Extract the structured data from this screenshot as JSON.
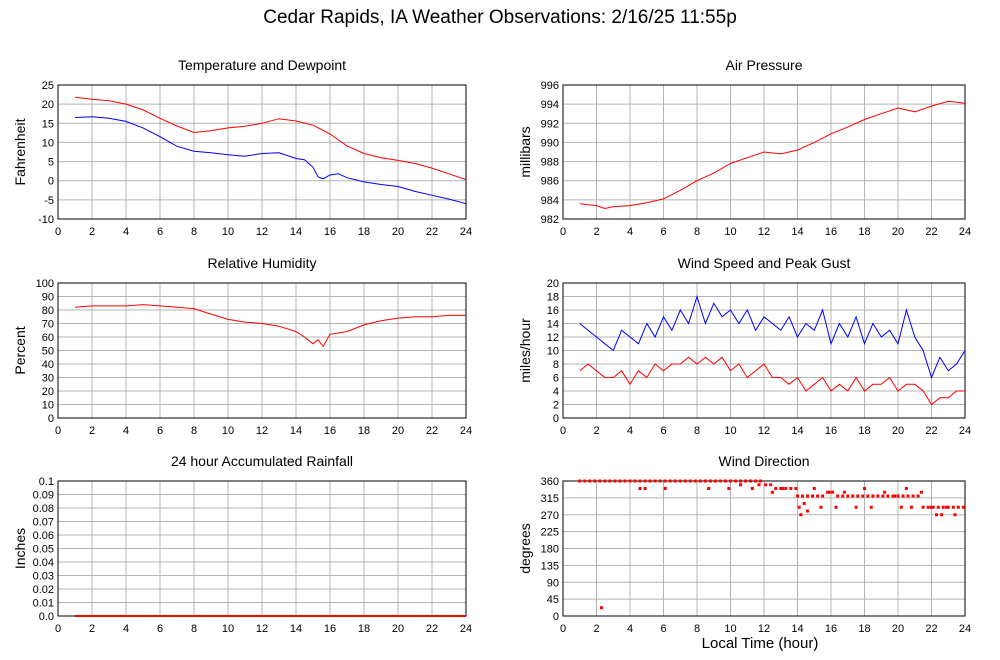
{
  "page": {
    "title": "Cedar Rapids, IA Weather Observations: 2/16/25 11:55p",
    "xlabel": "Local Time (hour)"
  },
  "colors": {
    "red": "#ff0000",
    "blue": "#0000ff",
    "grid": "#b4b4b4",
    "axis": "#000000"
  },
  "chart_data": [
    {
      "id": "temp",
      "type": "line",
      "title": "Temperature and Dewpoint",
      "ylabel": "Fahrenheit",
      "xlim": [
        0,
        24
      ],
      "ylim": [
        -10,
        25
      ],
      "xticks": [
        0,
        2,
        4,
        6,
        8,
        10,
        12,
        14,
        16,
        18,
        20,
        22,
        24
      ],
      "yticks": [
        -10,
        -5,
        0,
        5,
        10,
        15,
        20,
        25
      ],
      "grid": true,
      "series": [
        {
          "color": "#ff0000",
          "x": [
            1,
            2,
            3,
            4,
            5,
            6,
            7,
            8,
            9,
            10,
            11,
            12,
            13,
            14,
            15,
            16,
            17,
            18,
            19,
            20,
            21,
            22,
            23,
            24
          ],
          "y": [
            21.8,
            21.3,
            20.9,
            20.0,
            18.5,
            16.3,
            14.3,
            12.6,
            13.1,
            13.8,
            14.2,
            15.0,
            16.2,
            15.6,
            14.5,
            12.2,
            9.1,
            7.1,
            6.0,
            5.3,
            4.5,
            3.3,
            1.8,
            0.3
          ]
        },
        {
          "color": "#0000ff",
          "x": [
            1,
            2,
            3,
            4,
            5,
            6,
            7,
            8,
            9,
            10,
            11,
            12,
            13,
            14,
            14.5,
            15,
            15.3,
            15.6,
            16,
            16.5,
            17,
            18,
            19,
            20,
            21,
            22,
            23,
            24
          ],
          "y": [
            16.5,
            16.7,
            16.3,
            15.5,
            13.8,
            11.5,
            9.0,
            7.7,
            7.3,
            6.8,
            6.4,
            7.1,
            7.3,
            5.8,
            5.5,
            3.5,
            1.0,
            0.5,
            1.5,
            1.8,
            0.8,
            -0.3,
            -1.0,
            -1.5,
            -2.8,
            -3.8,
            -4.8,
            -6.0
          ]
        }
      ]
    },
    {
      "id": "pres",
      "type": "line",
      "title": "Air Pressure",
      "ylabel": "millibars",
      "xlim": [
        0,
        24
      ],
      "ylim": [
        982,
        996
      ],
      "xticks": [
        0,
        2,
        4,
        6,
        8,
        10,
        12,
        14,
        16,
        18,
        20,
        22,
        24
      ],
      "yticks": [
        982,
        984,
        986,
        988,
        990,
        992,
        994,
        996
      ],
      "grid": true,
      "series": [
        {
          "color": "#ff0000",
          "x": [
            1,
            2,
            2.5,
            3,
            4,
            5,
            6,
            7,
            8,
            9,
            10,
            11,
            12,
            13,
            14,
            15,
            16,
            17,
            18,
            19,
            20,
            21,
            22,
            23,
            24
          ],
          "y": [
            983.6,
            983.4,
            983.1,
            983.3,
            983.4,
            983.7,
            984.1,
            985.0,
            986.0,
            986.8,
            987.8,
            988.4,
            989.0,
            988.8,
            989.2,
            990.0,
            990.9,
            991.6,
            992.4,
            993.0,
            993.6,
            993.2,
            993.8,
            994.3,
            994.1
          ]
        }
      ]
    },
    {
      "id": "rh",
      "type": "line",
      "title": "Relative Humidity",
      "ylabel": "Percent",
      "xlim": [
        0,
        24
      ],
      "ylim": [
        0,
        100
      ],
      "xticks": [
        0,
        2,
        4,
        6,
        8,
        10,
        12,
        14,
        16,
        18,
        20,
        22,
        24
      ],
      "yticks": [
        0,
        10,
        20,
        30,
        40,
        50,
        60,
        70,
        80,
        90,
        100
      ],
      "grid": true,
      "series": [
        {
          "color": "#ff0000",
          "x": [
            1,
            2,
            3,
            4,
            5,
            6,
            7,
            8,
            9,
            10,
            11,
            12,
            13,
            14,
            14.5,
            15,
            15.3,
            15.6,
            16,
            17,
            18,
            19,
            20,
            21,
            22,
            23,
            24
          ],
          "y": [
            82,
            83,
            83,
            83,
            84,
            83,
            82,
            81,
            77,
            73,
            71,
            70,
            68,
            64,
            60,
            55,
            58,
            53,
            62,
            64,
            69,
            72,
            74,
            75,
            75,
            76,
            76
          ]
        }
      ]
    },
    {
      "id": "wind",
      "type": "line",
      "title": "Wind Speed and Peak Gust",
      "ylabel": "miles/hour",
      "xlim": [
        0,
        24
      ],
      "ylim": [
        0,
        20
      ],
      "xticks": [
        0,
        2,
        4,
        6,
        8,
        10,
        12,
        14,
        16,
        18,
        20,
        22,
        24
      ],
      "yticks": [
        0,
        2,
        4,
        6,
        8,
        10,
        12,
        14,
        16,
        18,
        20
      ],
      "grid": true,
      "series": [
        {
          "color": "#0000ff",
          "x": [
            1,
            1.5,
            2,
            2.5,
            3,
            3.5,
            4,
            4.5,
            5,
            5.5,
            6,
            6.5,
            7,
            7.5,
            8,
            8.5,
            9,
            9.5,
            10,
            10.5,
            11,
            11.5,
            12,
            12.5,
            13,
            13.5,
            14,
            14.5,
            15,
            15.5,
            16,
            16.5,
            17,
            17.5,
            18,
            18.5,
            19,
            19.5,
            20,
            20.5,
            21,
            21.5,
            22,
            22.5,
            23,
            23.5,
            24
          ],
          "y": [
            14,
            13,
            12,
            11,
            10,
            13,
            12,
            11,
            14,
            12,
            15,
            13,
            16,
            14,
            18,
            14,
            17,
            15,
            16,
            14,
            16,
            13,
            15,
            14,
            13,
            15,
            12,
            14,
            13,
            16,
            11,
            14,
            12,
            15,
            11,
            14,
            12,
            13,
            11,
            16,
            12,
            10,
            6,
            9,
            7,
            8,
            10
          ]
        },
        {
          "color": "#ff0000",
          "x": [
            1,
            1.5,
            2,
            2.5,
            3,
            3.5,
            4,
            4.5,
            5,
            5.5,
            6,
            6.5,
            7,
            7.5,
            8,
            8.5,
            9,
            9.5,
            10,
            10.5,
            11,
            11.5,
            12,
            12.5,
            13,
            13.5,
            14,
            14.5,
            15,
            15.5,
            16,
            16.5,
            17,
            17.5,
            18,
            18.5,
            19,
            19.5,
            20,
            20.5,
            21,
            21.5,
            22,
            22.5,
            23,
            23.5,
            24
          ],
          "y": [
            7,
            8,
            7,
            6,
            6,
            7,
            5,
            7,
            6,
            8,
            7,
            8,
            8,
            9,
            8,
            9,
            8,
            9,
            7,
            8,
            6,
            7,
            8,
            6,
            6,
            5,
            6,
            4,
            5,
            6,
            4,
            5,
            4,
            6,
            4,
            5,
            5,
            6,
            4,
            5,
            5,
            4,
            2,
            3,
            3,
            4,
            4
          ]
        }
      ]
    },
    {
      "id": "rain",
      "type": "line",
      "title": "24 hour Accumulated Rainfall",
      "ylabel": "Inches",
      "xlim": [
        0,
        24
      ],
      "ylim": [
        0,
        0.1
      ],
      "xticks": [
        0,
        2,
        4,
        6,
        8,
        10,
        12,
        14,
        16,
        18,
        20,
        22,
        24
      ],
      "yticks": [
        0.0,
        0.01,
        0.02,
        0.03,
        0.04,
        0.05,
        0.06,
        0.07,
        0.08,
        0.09,
        0.1
      ],
      "ytick_labels": [
        "0.0",
        "0.01",
        "0.02",
        "0.03",
        "0.04",
        "0.05",
        "0.06",
        "0.07",
        "0.08",
        "0.09",
        "0.1"
      ],
      "grid": true,
      "series": [
        {
          "color": "#ff0000",
          "x": [
            1,
            24
          ],
          "y": [
            0,
            0
          ]
        }
      ]
    },
    {
      "id": "wdir",
      "type": "scatter",
      "title": "Wind Direction",
      "ylabel": "degrees",
      "xlim": [
        0,
        24
      ],
      "ylim": [
        0,
        360
      ],
      "xticks": [
        0,
        2,
        4,
        6,
        8,
        10,
        12,
        14,
        16,
        18,
        20,
        22,
        24
      ],
      "yticks": [
        0,
        45,
        90,
        135,
        180,
        225,
        270,
        315,
        360
      ],
      "grid": true,
      "series": [
        {
          "color": "#ff0000",
          "x": [
            1.0,
            1.3,
            1.6,
            1.9,
            2.2,
            2.5,
            2.8,
            3.1,
            3.4,
            3.7,
            4.0,
            4.3,
            4.6,
            4.9,
            5.2,
            5.5,
            5.8,
            6.1,
            6.4,
            6.7,
            7.0,
            7.3,
            7.6,
            7.9,
            8.2,
            8.5,
            8.8,
            9.1,
            9.4,
            9.7,
            10.0,
            10.3,
            10.6,
            10.9,
            11.2,
            11.5,
            11.8,
            12.1,
            12.4,
            12.7,
            13.0,
            13.3,
            13.6,
            14.0,
            14.3,
            14.6,
            14.9,
            15.2,
            15.5,
            15.8,
            16.1,
            16.4,
            16.7,
            17.0,
            17.3,
            17.6,
            17.9,
            18.2,
            18.5,
            18.8,
            19.1,
            19.4,
            19.7,
            20.0,
            20.3,
            20.6,
            20.9,
            21.2,
            21.5,
            21.8,
            22.1,
            22.4,
            22.7,
            23.0,
            23.3,
            23.6,
            23.9,
            2.3,
            4.6,
            4.9,
            6.1,
            8.7,
            9.9,
            10.6,
            11.3,
            11.7,
            12.5,
            13.1,
            13.9,
            14.1,
            14.2,
            14.4,
            14.6,
            15.0,
            15.4,
            15.9,
            16.3,
            16.8,
            17.5,
            18.0,
            18.4,
            19.2,
            19.8,
            20.2,
            20.5,
            20.8,
            21.4,
            22.0,
            22.3,
            22.6,
            22.9,
            23.4
          ],
          "y": [
            360,
            360,
            360,
            360,
            360,
            360,
            360,
            360,
            360,
            360,
            360,
            360,
            360,
            360,
            360,
            360,
            360,
            360,
            360,
            360,
            360,
            360,
            360,
            360,
            360,
            360,
            360,
            360,
            360,
            360,
            360,
            360,
            360,
            360,
            360,
            360,
            360,
            350,
            350,
            340,
            340,
            340,
            340,
            320,
            320,
            320,
            320,
            320,
            320,
            330,
            330,
            320,
            320,
            320,
            320,
            320,
            320,
            320,
            320,
            320,
            320,
            320,
            320,
            320,
            320,
            320,
            320,
            320,
            290,
            290,
            290,
            290,
            290,
            290,
            290,
            290,
            290,
            22,
            340,
            340,
            340,
            340,
            340,
            350,
            340,
            350,
            330,
            340,
            340,
            290,
            270,
            300,
            280,
            340,
            290,
            330,
            290,
            330,
            290,
            340,
            290,
            330,
            320,
            290,
            340,
            290,
            330,
            290,
            270,
            270,
            290,
            270
          ]
        }
      ]
    }
  ]
}
